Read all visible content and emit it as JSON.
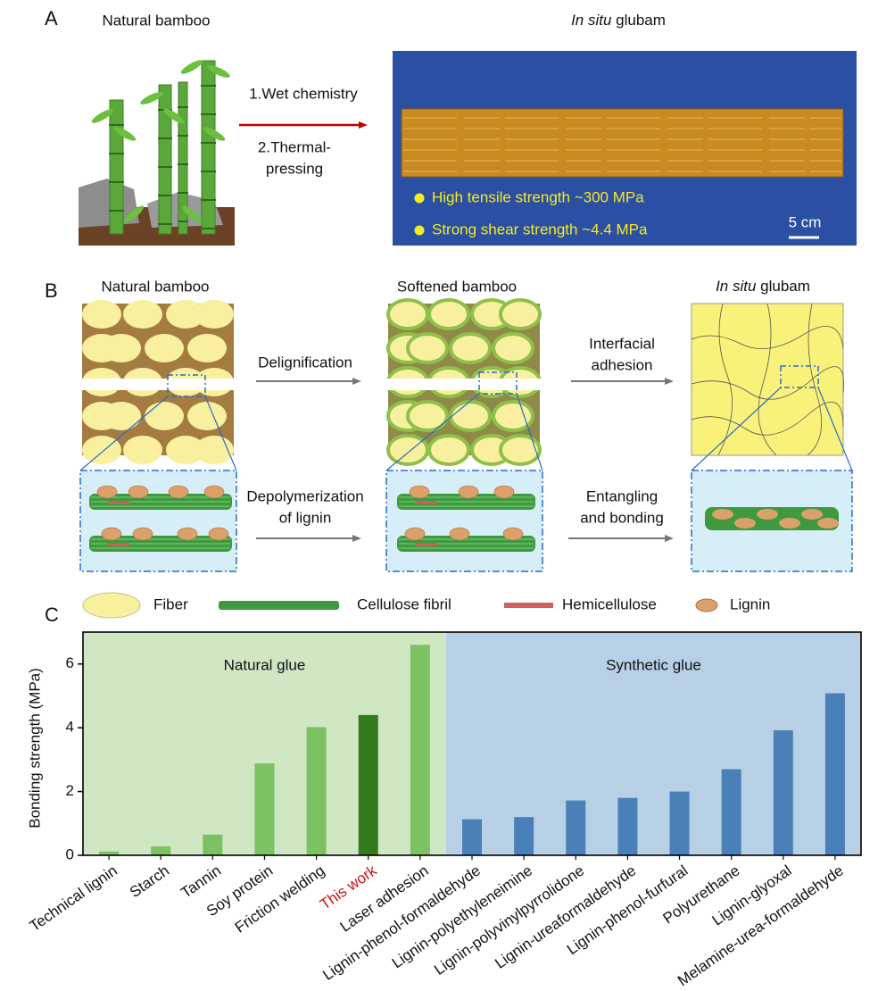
{
  "panel_a": {
    "label": "A",
    "left_title": "Natural bamboo",
    "steps": [
      "1.Wet chemistry",
      "2.Thermal-",
      "pressing"
    ],
    "right_title_italic": "In situ",
    "right_title_rest": "glubam",
    "bullets": [
      "High tensile strength ~300 MPa",
      "Strong shear strength ~4.4 MPa"
    ],
    "scale_bar": "5 cm"
  },
  "panel_b": {
    "label": "B",
    "titles": [
      {
        "text": "Natural bamboo"
      },
      {
        "text": "Softened bamboo"
      },
      {
        "italic": "In situ",
        "rest": "glubam"
      }
    ],
    "top_arrows": [
      [
        "Delignification"
      ],
      [
        "Interfacial",
        "adhesion"
      ]
    ],
    "bottom_arrows": [
      [
        "Depolymerization",
        "of lignin"
      ],
      [
        "Entangling",
        "and bonding"
      ]
    ]
  },
  "legend": [
    {
      "label": "Fiber"
    },
    {
      "label": "Cellulose fibril"
    },
    {
      "label": "Hemicellulose"
    },
    {
      "label": "Lignin"
    }
  ],
  "panel_c_label": "C",
  "chart_data": {
    "type": "bar",
    "y_label": "Bonding strength (MPa)",
    "categories": [
      "Technical lignin",
      "Starch",
      "Tannin",
      "Soy protein",
      "Friction welding",
      "This work",
      "Laser adhesion",
      "Lignin-phenol-formaldehyde",
      "Lignin-polyethyleneimine",
      "Lignin-polyvinylpyrrolidone",
      "Lignin-ureaformaldehyde",
      "Lignin-phenol-furfural",
      "Polyurethane",
      "Lignin-glyoxal",
      "Melamine-urea-formaldehyde"
    ],
    "values": [
      0.12,
      0.28,
      0.65,
      2.88,
      4.02,
      4.4,
      6.6,
      1.13,
      1.2,
      1.72,
      1.8,
      2.0,
      2.7,
      3.92,
      5.08
    ],
    "colors": [
      "#7cc262",
      "#7cc262",
      "#7cc262",
      "#7cc262",
      "#7cc262",
      "#367a1e",
      "#7cc262",
      "#4a80b8",
      "#4a80b8",
      "#4a80b8",
      "#4a80b8",
      "#4a80b8",
      "#4a80b8",
      "#4a80b8",
      "#4a80b8"
    ],
    "regions": [
      {
        "label": "Natural glue",
        "color": "#cfe7c3"
      },
      {
        "label": "Synthetic glue",
        "color": "#b7d0e6"
      }
    ],
    "ylim": [
      0,
      7
    ],
    "yticks": [
      0,
      2,
      4,
      6
    ]
  }
}
